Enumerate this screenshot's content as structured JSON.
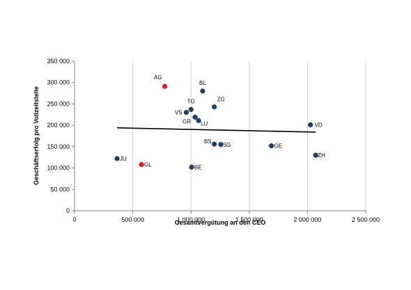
{
  "chart_data": {
    "type": "scatter",
    "title": "",
    "xlabel": "Gesamtvergütung an den CEO",
    "ylabel": "Geschäftserfolg pro Vollzeitstelle",
    "xlim": [
      0,
      2500000
    ],
    "ylim": [
      0,
      350000
    ],
    "xticks": [
      0,
      500000,
      1000000,
      1500000,
      2000000,
      2500000
    ],
    "yticks": [
      0,
      50000,
      100000,
      150000,
      200000,
      250000,
      300000,
      350000
    ],
    "xtick_labels": [
      "0",
      "500 000",
      "1 000 000",
      "1 500 000",
      "2 000 000",
      "2 500 000"
    ],
    "ytick_labels": [
      "0",
      "50 000",
      "100 000",
      "150 000",
      "200 000",
      "250 000",
      "300 000",
      "350 000"
    ],
    "grid": "vertical",
    "colors": {
      "default": "#1f3e6e",
      "highlight": "#e31a1c",
      "trend": "#000000"
    },
    "points": [
      {
        "label": "AG",
        "x": 775000,
        "y": 291000,
        "highlight": true
      },
      {
        "label": "BL",
        "x": 1100000,
        "y": 280000,
        "highlight": false
      },
      {
        "label": "TG",
        "x": 1000000,
        "y": 237000,
        "highlight": false
      },
      {
        "label": "ZG",
        "x": 1200000,
        "y": 243000,
        "highlight": false
      },
      {
        "label": "VS",
        "x": 960000,
        "y": 230000,
        "highlight": false
      },
      {
        "label": "GR",
        "x": 1035000,
        "y": 219000,
        "highlight": false
      },
      {
        "label": "LU",
        "x": 1065000,
        "y": 211000,
        "highlight": false
      },
      {
        "label": "VD",
        "x": 2025000,
        "y": 201000,
        "highlight": false
      },
      {
        "label": "BS",
        "x": 1200000,
        "y": 156000,
        "highlight": false
      },
      {
        "label": "SG",
        "x": 1255000,
        "y": 155000,
        "highlight": false
      },
      {
        "label": "GE",
        "x": 1690000,
        "y": 152000,
        "highlight": false
      },
      {
        "label": "ZH",
        "x": 2070000,
        "y": 130000,
        "highlight": false
      },
      {
        "label": "JU",
        "x": 365000,
        "y": 122000,
        "highlight": false
      },
      {
        "label": "GL",
        "x": 575000,
        "y": 108000,
        "highlight": true
      },
      {
        "label": "BE",
        "x": 1005000,
        "y": 102000,
        "highlight": false
      }
    ],
    "trendline": {
      "x": [
        365000,
        2070000
      ],
      "y": [
        194000,
        184000
      ]
    }
  }
}
